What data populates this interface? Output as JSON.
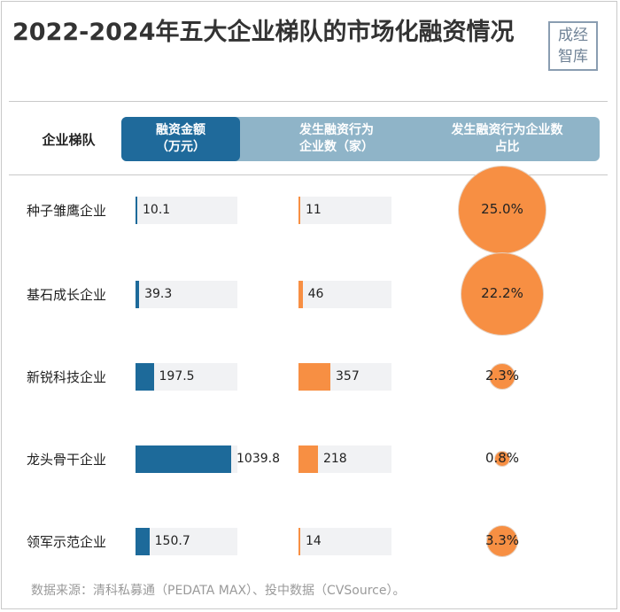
{
  "title": "2022-2024年五大企业梯队的市场化融资情况",
  "logo": {
    "line1": "成经",
    "line2": "智库"
  },
  "header": {
    "tier_label": "企业梯队",
    "columns": [
      {
        "line1": "融资金额",
        "line2": "（万元）"
      },
      {
        "line1": "发生融资行为",
        "line2": "企业数（家）"
      },
      {
        "line1": "发生融资行为企业数",
        "line2": "占比"
      }
    ]
  },
  "colors": {
    "blue": "#1d6a9a",
    "orange": "#f78f43",
    "header_band": "#8fb4c8",
    "header_selected": "#1f6a9b"
  },
  "chart_data": {
    "type": "table",
    "categories": [
      "种子雏鹰企业",
      "基石成长企业",
      "新锐科技企业",
      "龙头骨干企业",
      "领军示范企业"
    ],
    "series": [
      {
        "name": "融资金额（万元）",
        "values": [
          10.1,
          39.3,
          197.5,
          1039.8,
          150.7
        ],
        "labels": [
          "10.1",
          "39.3",
          "197.5",
          "1039.8",
          "150.7"
        ]
      },
      {
        "name": "发生融资行为企业数（家）",
        "values": [
          11,
          46,
          357,
          218,
          14
        ],
        "labels": [
          "11",
          "46",
          "357",
          "218",
          "14"
        ]
      },
      {
        "name": "发生融资行为企业数占比",
        "values": [
          25.0,
          22.2,
          2.3,
          0.8,
          3.3
        ],
        "labels": [
          "25.0%",
          "22.2%",
          "2.3%",
          "0.8%",
          "3.3%"
        ]
      }
    ],
    "max_amount": 1039.8,
    "max_count": 357,
    "max_share": 25.0
  },
  "source": "数据来源：清科私募通（PEDATA MAX）、投中数据（CVSource）。"
}
